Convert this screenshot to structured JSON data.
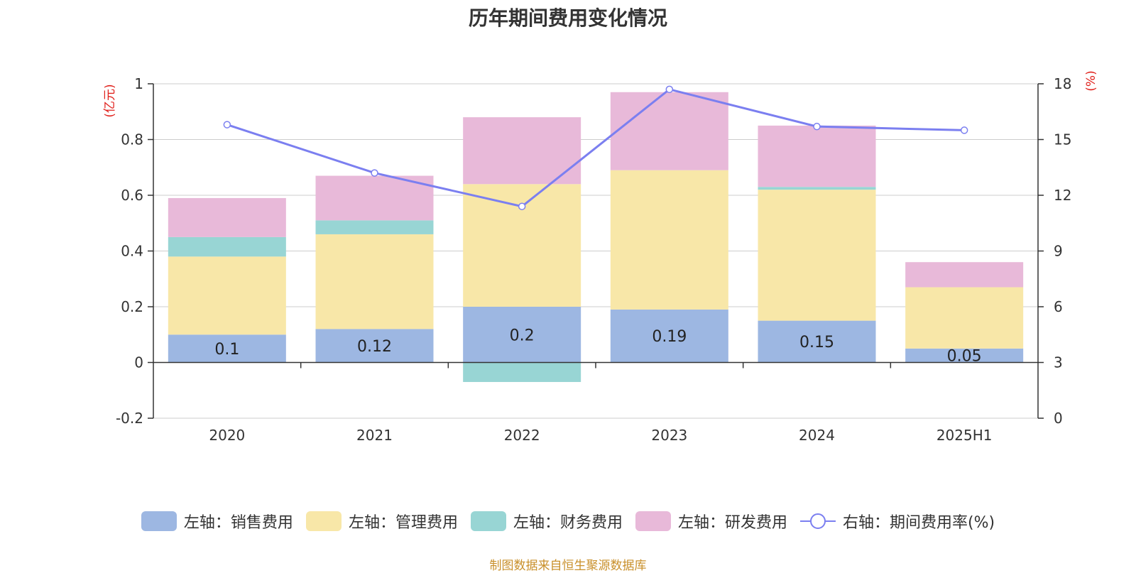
{
  "chart_data": {
    "type": "bar",
    "title": "历年期间费用变化情况",
    "categories": [
      "2020",
      "2021",
      "2022",
      "2023",
      "2024",
      "2025H1"
    ],
    "left_axis": {
      "unit": "(亿元)",
      "ylim": [
        -0.2,
        1
      ],
      "ticks": [
        "-0.2",
        "0",
        "0.2",
        "0.4",
        "0.6",
        "0.8",
        "1"
      ]
    },
    "right_axis": {
      "unit": "(%)",
      "ylim": [
        0,
        18
      ],
      "ticks": [
        "0",
        "3",
        "6",
        "9",
        "12",
        "15",
        "18"
      ]
    },
    "stacked": true,
    "grid": true,
    "legend_position": "bottom",
    "series": [
      {
        "name": "左轴：销售费用",
        "type": "bar",
        "axis": "left",
        "color": "#9db7e2",
        "values": [
          0.1,
          0.12,
          0.2,
          0.19,
          0.15,
          0.05
        ],
        "labels": [
          "0.1",
          "0.12",
          "0.2",
          "0.19",
          "0.15",
          "0.05"
        ]
      },
      {
        "name": "左轴：管理费用",
        "type": "bar",
        "axis": "left",
        "color": "#f8e7a8",
        "values": [
          0.28,
          0.34,
          0.44,
          0.5,
          0.47,
          0.22
        ]
      },
      {
        "name": "左轴：财务费用",
        "type": "bar",
        "axis": "left",
        "color": "#98d5d4",
        "values": [
          0.07,
          0.05,
          -0.07,
          0.0,
          0.01,
          0.0
        ]
      },
      {
        "name": "左轴：研发费用",
        "type": "bar",
        "axis": "left",
        "color": "#e8b9d9",
        "values": [
          0.14,
          0.16,
          0.24,
          0.28,
          0.22,
          0.09
        ]
      },
      {
        "name": "右轴：期间费用率(%)",
        "type": "line",
        "axis": "right",
        "color": "#7b7ff0",
        "values": [
          15.8,
          13.2,
          11.4,
          17.7,
          15.7,
          15.5
        ]
      }
    ],
    "source": "制图数据来自恒生聚源数据库"
  }
}
